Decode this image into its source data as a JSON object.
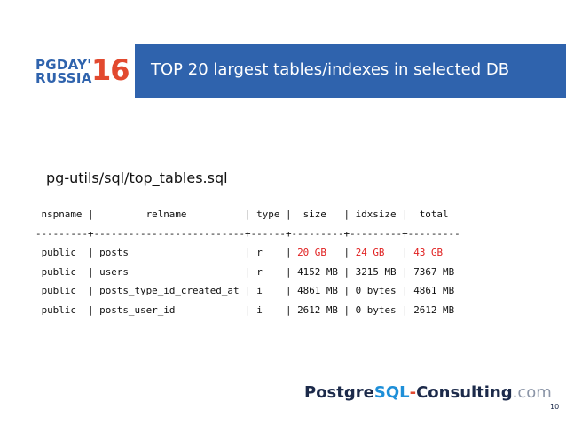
{
  "logo": {
    "line1": "PGDAY'",
    "line2": "RUSSIA",
    "year": "16"
  },
  "slide": {
    "title": "TOP 20 largest tables/indexes in selected DB",
    "subtitle": "pg-utils/sql/top_tables.sql",
    "page_number": "10"
  },
  "table": {
    "header": " nspname |         relname          | type |  size   | idxsize |  total",
    "separator": "---------+--------------------------+------+---------+---------+---------",
    "rows": [
      {
        "nspname": "public",
        "relname": "posts",
        "type": "r",
        "size": "20 GB",
        "idxsize": "24 GB",
        "total": "43 GB"
      },
      {
        "nspname": "public",
        "relname": "users",
        "type": "r",
        "size": "4152 MB",
        "idxsize": "3215 MB",
        "total": "7367 MB"
      },
      {
        "nspname": "public",
        "relname": "posts_type_id_created_at",
        "type": "i",
        "size": "4861 MB",
        "idxsize": "0 bytes",
        "total": "4861 MB"
      },
      {
        "nspname": "public",
        "relname": "posts_user_id",
        "type": "i",
        "size": "2612 MB",
        "idxsize": "0 bytes",
        "total": "2612 MB"
      }
    ]
  },
  "footer": {
    "part1": "Postgre",
    "part2": "SQL",
    "part3": "-",
    "part4": "Consulting",
    "part5": ".com"
  },
  "colors": {
    "title_bar": "#2f63ad",
    "highlight": "#e02020",
    "logo_blue": "#2f63ad",
    "logo_red": "#e2492f"
  }
}
